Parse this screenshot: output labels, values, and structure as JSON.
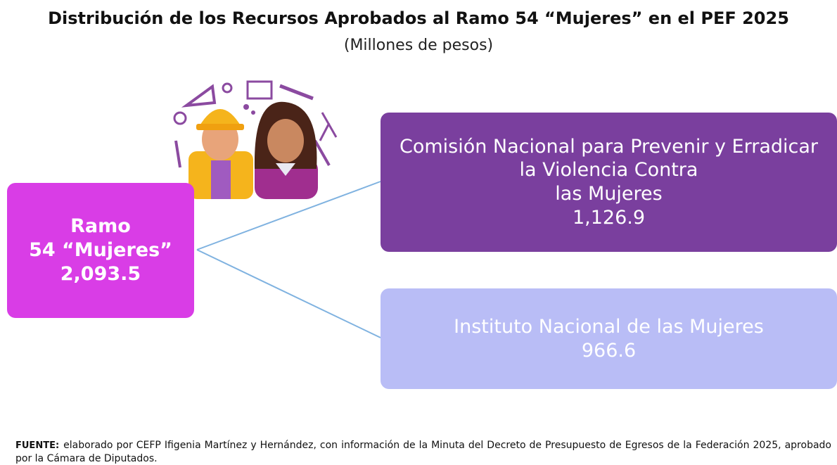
{
  "header": {
    "title": "Distribución de los Recursos Aprobados al Ramo 54 “Mujeres” en el PEF 2025",
    "subtitle": "(Millones de pesos)"
  },
  "nodes": [
    {
      "lines": [
        "Ramo",
        "54 “Mujeres”"
      ],
      "value": "2,093.5"
    },
    {
      "lines": [
        "Comisión Nacional para Prevenir y Erradicar",
        "la Violencia Contra",
        "las Mujeres"
      ],
      "value": "1,126.9"
    },
    {
      "lines": [
        "Instituto Nacional de las Mujeres"
      ],
      "value": "966.6"
    }
  ],
  "source": {
    "label": "FUENTE:",
    "text": "elaborado por CEFP Ifigenia Martínez y Hernández, con información de la Minuta del Decreto de Presupuesto de Egresos de la Federación 2025, aprobado por la Cámara de Diputados."
  }
}
